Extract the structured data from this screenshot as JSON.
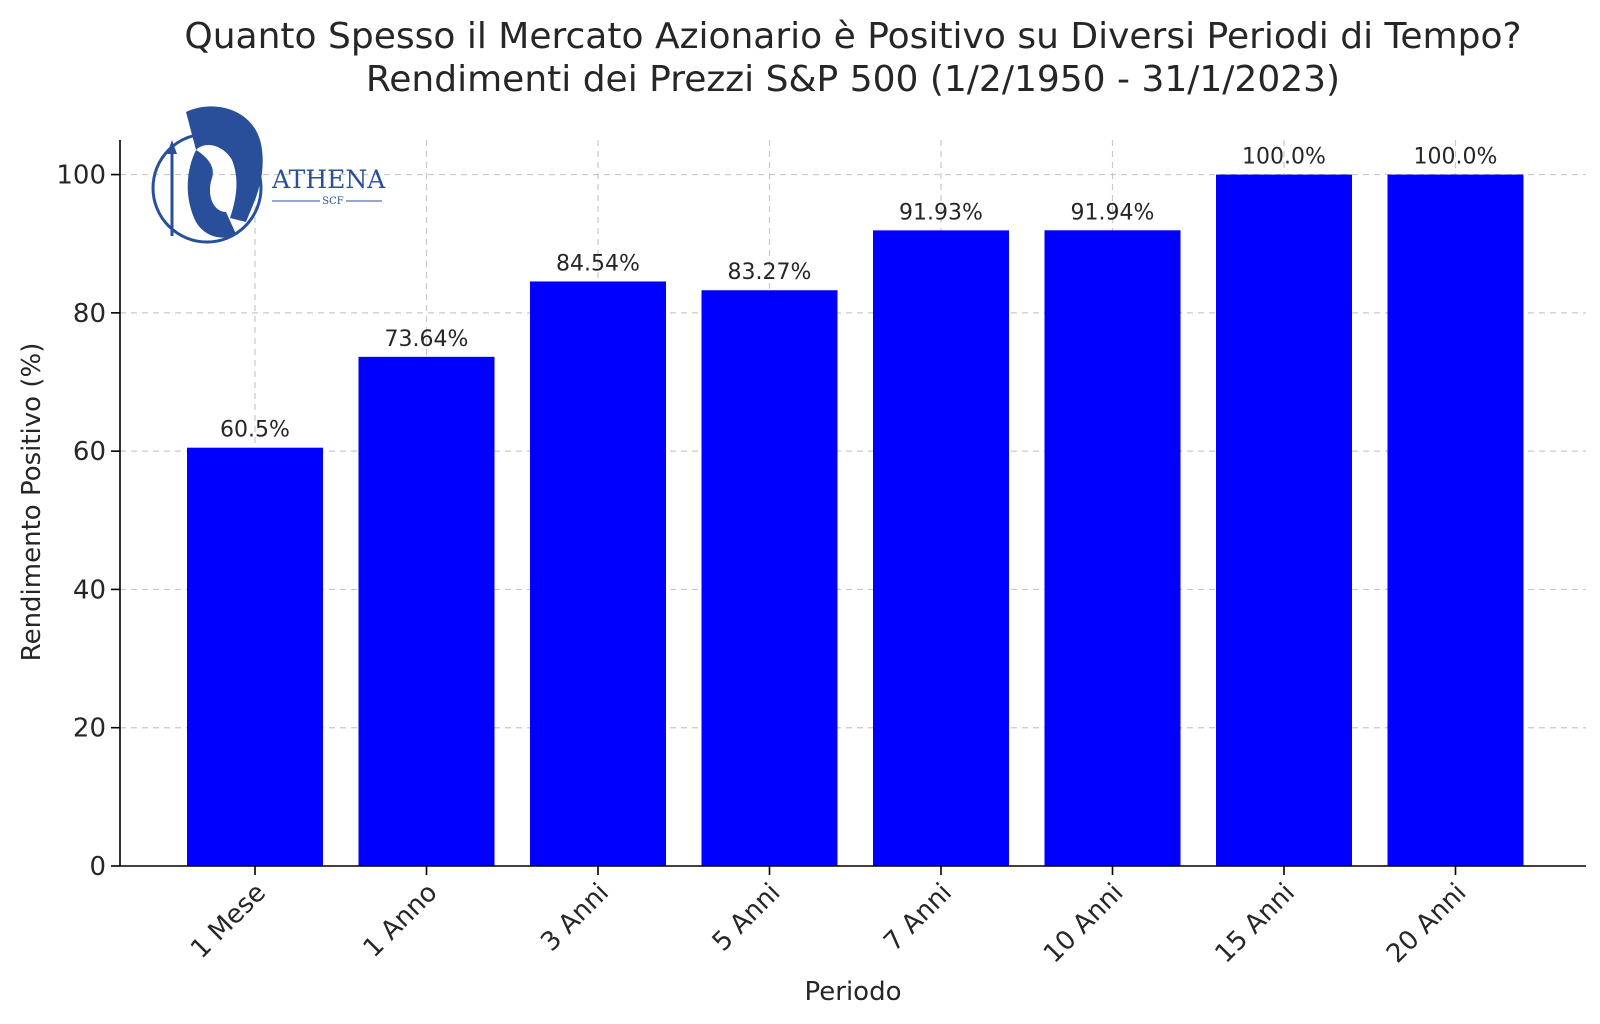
{
  "logo": {
    "brand": "ATHENA",
    "sub": "SCF",
    "accent_color": "#2a4f9a"
  },
  "chart_data": {
    "type": "bar",
    "title_line1": "Quanto Spesso il Mercato Azionario è Positivo su Diversi Periodi di Tempo?",
    "title_line2": "Rendimenti dei Prezzi S&P 500 (1/2/1950 - 31/1/2023)",
    "xlabel": "Periodo",
    "ylabel": "Rendimento Positivo (%)",
    "categories": [
      "1 Mese",
      "1 Anno",
      "3 Anni",
      "5 Anni",
      "7 Anni",
      "10 Anni",
      "15 Anni",
      "20 Anni"
    ],
    "values": [
      60.5,
      73.64,
      84.54,
      83.27,
      91.93,
      91.94,
      100.0,
      100.0
    ],
    "data_labels": [
      "60.5%",
      "73.64%",
      "84.54%",
      "83.27%",
      "91.93%",
      "91.94%",
      "100.0%",
      "100.0%"
    ],
    "ylim": [
      0,
      105
    ],
    "yticks": [
      0,
      20,
      40,
      60,
      80,
      100
    ],
    "grid": true,
    "bar_color": "#0000ff"
  }
}
